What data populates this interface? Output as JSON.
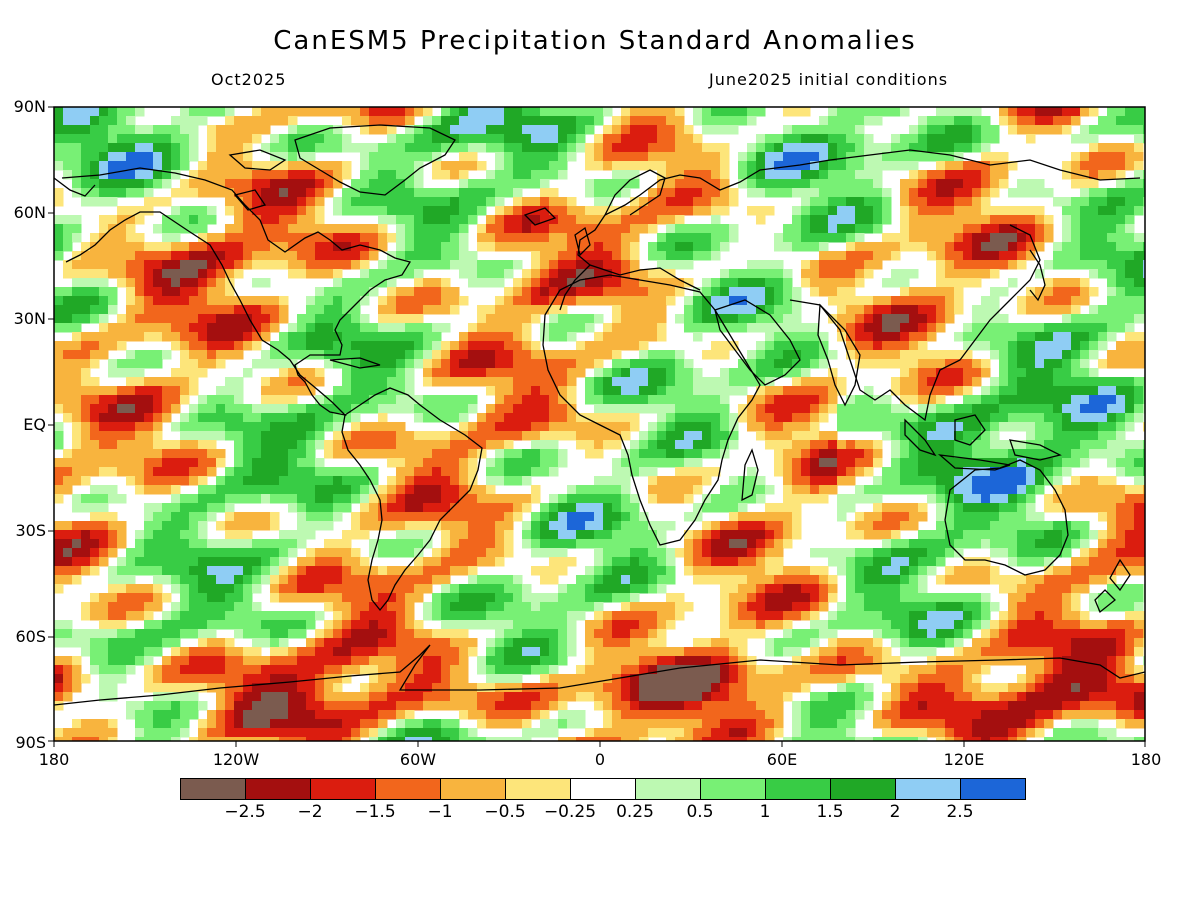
{
  "title": "CanESM5 Precipitation Standard Anomalies",
  "target_month": "Oct2025",
  "init_conditions": "June2025 initial conditions",
  "lat_labels": [
    "90N",
    "60N",
    "30N",
    "EQ",
    "30S",
    "60S",
    "90S"
  ],
  "lon_labels": [
    "180",
    "120W",
    "60W",
    "0",
    "60E",
    "120E",
    "180"
  ],
  "colorbar": {
    "colors": [
      "#7b5b4f",
      "#a40f0f",
      "#db1d0f",
      "#f2661c",
      "#f8b43e",
      "#fde57a",
      "#ffffff",
      "#bdf9b2",
      "#78f075",
      "#38cc45",
      "#20a826",
      "#8fcdf4",
      "#1c66d8"
    ],
    "labels": [
      "-2.5",
      "-2",
      "-1.5",
      "-1",
      "-0.5",
      "-0.25",
      "0.25",
      "0.5",
      "1",
      "1.5",
      "2",
      "2.5"
    ]
  }
}
